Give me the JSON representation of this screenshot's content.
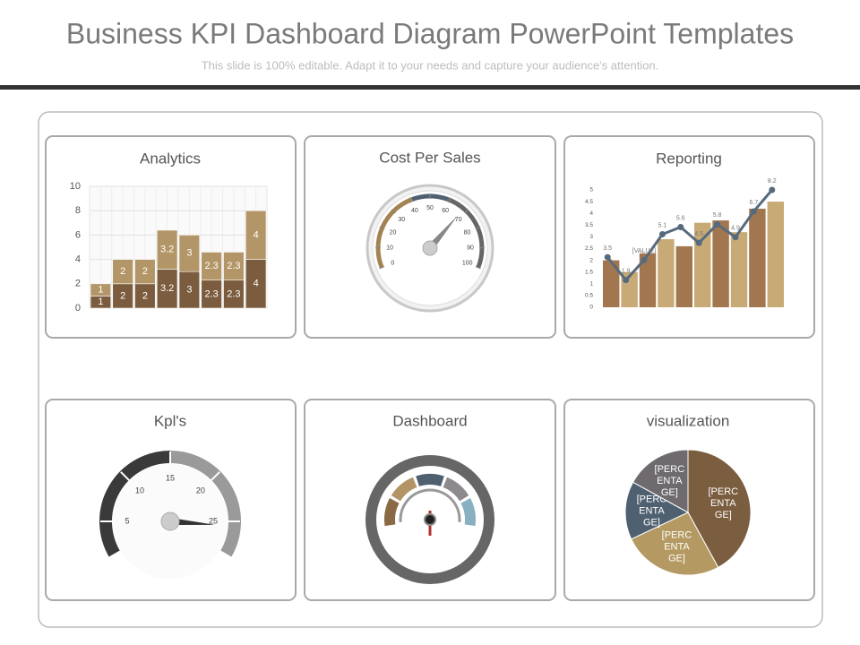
{
  "header": {
    "title": "Business KPI Dashboard Diagram PowerPoint Templates",
    "subtitle": "This slide is 100% editable. Adapt it to your needs and capture your audience's attention."
  },
  "chart_data": [
    {
      "type": "bar",
      "title": "Analytics",
      "stacked": true,
      "grid": true,
      "categories": [
        null,
        null,
        null,
        null,
        null,
        null,
        null,
        null
      ],
      "series": [
        {
          "color": "#7b5c3e",
          "values": [
            1,
            2,
            2,
            3.2,
            3,
            2.3,
            2.3,
            4
          ]
        },
        {
          "color": "#b39667",
          "values": [
            1,
            2,
            2,
            3.2,
            3,
            2.3,
            2.3,
            4
          ]
        }
      ],
      "ylim": [
        0,
        10
      ],
      "yticks": [
        0,
        2,
        4,
        6,
        8,
        10
      ]
    },
    {
      "type": "gauge",
      "title": "Cost Per Sales",
      "lim": [
        0,
        100
      ],
      "ticks": [
        0,
        10,
        20,
        30,
        40,
        50,
        60,
        70,
        80,
        90,
        100
      ],
      "value": 68
    },
    {
      "type": "bar",
      "title": "Reporting",
      "stacked": false,
      "grid": false,
      "categories": [
        null,
        null,
        null,
        null,
        null,
        null,
        null,
        null,
        null,
        null
      ],
      "series": [
        {
          "colors": [
            "#a2774f",
            "#c7aa75"
          ],
          "values": [
            2.0,
            1.5,
            2.3,
            2.9,
            2.6,
            3.6,
            3.7,
            3.2,
            4.2,
            4.5
          ]
        },
        {
          "type": "line",
          "axis": "y2",
          "color": "#566a7e",
          "values": [
            3.5,
            1.9,
            3.3,
            5.1,
            5.6,
            4.5,
            5.8,
            4.9,
            6.7,
            8.2
          ],
          "value_labels": [
            "3.5",
            "1.9",
            "[VALUE]",
            "5.1",
            "5.6",
            "4.5",
            "5.8",
            "4.9",
            "6.7",
            "8.2"
          ]
        }
      ],
      "ylim": [
        0,
        5
      ],
      "yticks": [
        0,
        0.5,
        1,
        1.5,
        2,
        2.5,
        3,
        3.5,
        4,
        4.5,
        5
      ],
      "y2lim": [
        0,
        8.2
      ]
    },
    {
      "type": "gauge",
      "title": "Kpl's",
      "lim": [
        0,
        30
      ],
      "ticks": [
        5,
        10,
        15,
        20,
        25
      ],
      "value": 25.5
    },
    {
      "type": "dial",
      "title": "Dashboard"
    },
    {
      "type": "pie",
      "title": "visualization",
      "values": [
        42,
        26,
        15,
        17
      ],
      "value_labels": [
        "[PERCENTAGE]",
        "[PERCENTAGE]",
        "[PERCENTAGE]",
        "[PERCENTAGE]"
      ],
      "colors": [
        "#7b5d40",
        "#b49a62",
        "#4f6070",
        "#6e6a6e"
      ]
    }
  ]
}
